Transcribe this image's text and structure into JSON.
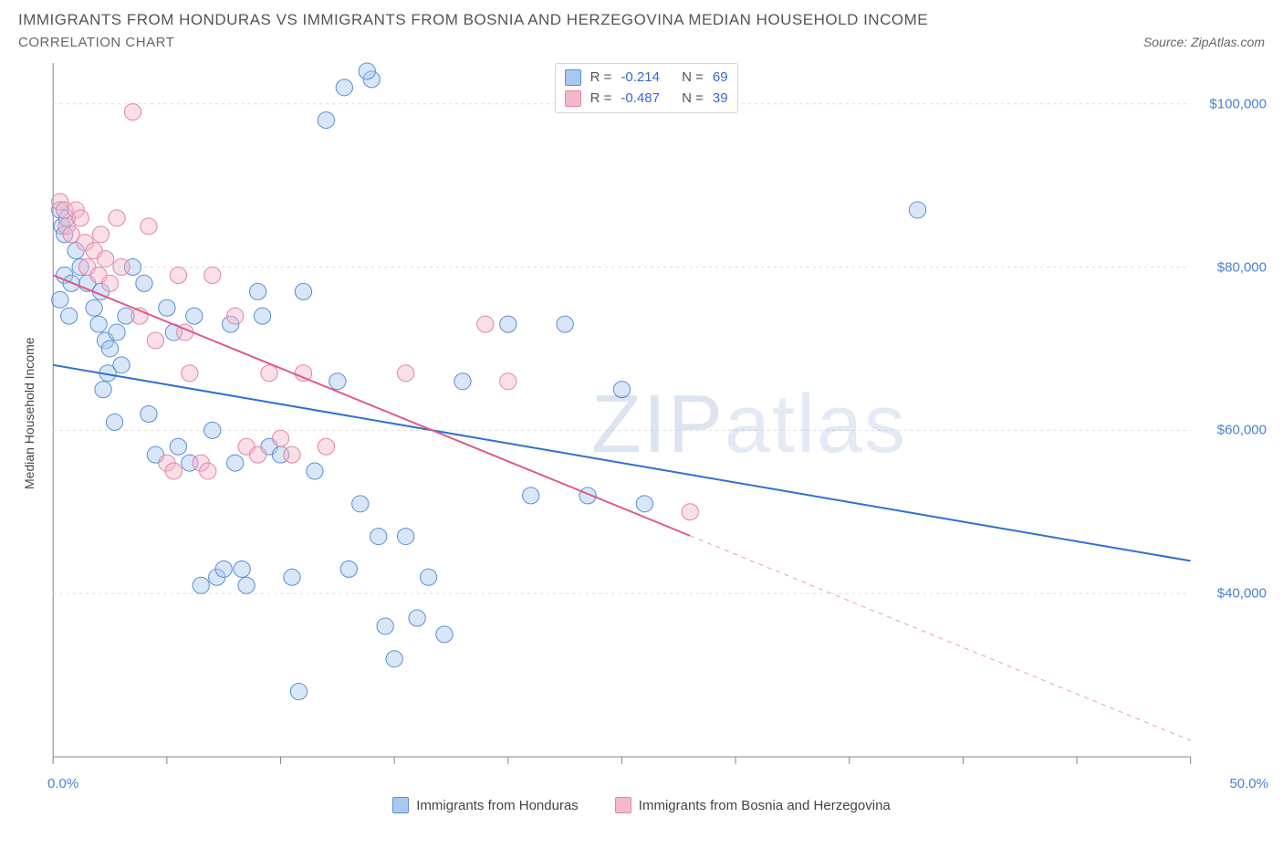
{
  "title": "IMMIGRANTS FROM HONDURAS VS IMMIGRANTS FROM BOSNIA AND HERZEGOVINA MEDIAN HOUSEHOLD INCOME",
  "subtitle": "CORRELATION CHART",
  "source": "Source: ZipAtlas.com",
  "watermark_a": "ZIP",
  "watermark_b": "atlas",
  "ylabel": "Median Household Income",
  "chart": {
    "type": "scatter",
    "background_color": "#ffffff",
    "grid_color": "#dcdcdc",
    "axis_color": "#888888",
    "tick_label_color": "#4a7fd8",
    "xlim": [
      0,
      50
    ],
    "ylim": [
      20000,
      105000
    ],
    "y_gridlines": [
      40000,
      60000,
      80000,
      100000
    ],
    "y_tick_labels": [
      "$40,000",
      "$60,000",
      "$80,000",
      "$100,000"
    ],
    "x_ticks": [
      0,
      5,
      10,
      15,
      20,
      25,
      30,
      35,
      40,
      45,
      50
    ],
    "x_min_label": "0.0%",
    "x_max_label": "50.0%",
    "marker_radius": 9,
    "marker_opacity": 0.45,
    "line_width": 2,
    "series": [
      {
        "name": "Immigrants from Honduras",
        "color_fill": "#a9c8f0",
        "color_stroke": "#5b8fd6",
        "line_color": "#2f6fd0",
        "R": "-0.214",
        "N": "69",
        "trend_x": [
          0,
          50
        ],
        "trend_y": [
          68000,
          44000
        ],
        "trend_solid_until": 50,
        "points": [
          [
            0.3,
            87000
          ],
          [
            0.4,
            85000
          ],
          [
            0.5,
            84000
          ],
          [
            0.6,
            86000
          ],
          [
            0.5,
            79000
          ],
          [
            0.8,
            78000
          ],
          [
            0.3,
            76000
          ],
          [
            0.7,
            74000
          ],
          [
            1.0,
            82000
          ],
          [
            1.2,
            80000
          ],
          [
            1.5,
            78000
          ],
          [
            1.8,
            75000
          ],
          [
            2.1,
            77000
          ],
          [
            2.0,
            73000
          ],
          [
            2.3,
            71000
          ],
          [
            2.5,
            70000
          ],
          [
            2.8,
            72000
          ],
          [
            3.0,
            68000
          ],
          [
            2.2,
            65000
          ],
          [
            2.4,
            67000
          ],
          [
            2.7,
            61000
          ],
          [
            3.2,
            74000
          ],
          [
            3.5,
            80000
          ],
          [
            4.0,
            78000
          ],
          [
            4.2,
            62000
          ],
          [
            4.5,
            57000
          ],
          [
            5.0,
            75000
          ],
          [
            5.3,
            72000
          ],
          [
            5.5,
            58000
          ],
          [
            6.0,
            56000
          ],
          [
            6.2,
            74000
          ],
          [
            6.5,
            41000
          ],
          [
            7.0,
            60000
          ],
          [
            7.2,
            42000
          ],
          [
            7.5,
            43000
          ],
          [
            7.8,
            73000
          ],
          [
            8.0,
            56000
          ],
          [
            8.3,
            43000
          ],
          [
            8.5,
            41000
          ],
          [
            9.0,
            77000
          ],
          [
            9.2,
            74000
          ],
          [
            9.5,
            58000
          ],
          [
            10.0,
            57000
          ],
          [
            10.5,
            42000
          ],
          [
            10.8,
            28000
          ],
          [
            11.0,
            77000
          ],
          [
            11.5,
            55000
          ],
          [
            12.0,
            98000
          ],
          [
            12.5,
            66000
          ],
          [
            13.0,
            43000
          ],
          [
            13.5,
            51000
          ],
          [
            14.0,
            103000
          ],
          [
            14.3,
            47000
          ],
          [
            14.6,
            36000
          ],
          [
            15.0,
            32000
          ],
          [
            15.5,
            47000
          ],
          [
            16.0,
            37000
          ],
          [
            16.5,
            42000
          ],
          [
            17.2,
            35000
          ],
          [
            18.0,
            66000
          ],
          [
            20.0,
            73000
          ],
          [
            21.0,
            52000
          ],
          [
            22.5,
            73000
          ],
          [
            23.5,
            52000
          ],
          [
            25.0,
            65000
          ],
          [
            26.0,
            51000
          ],
          [
            38.0,
            87000
          ],
          [
            12.8,
            102000
          ],
          [
            13.8,
            104000
          ]
        ]
      },
      {
        "name": "Immigrants from Bosnia and Herzegovina",
        "color_fill": "#f4b8c9",
        "color_stroke": "#e286a6",
        "line_color": "#e05a85",
        "R": "-0.487",
        "N": "39",
        "trend_x": [
          0,
          50
        ],
        "trend_y": [
          79000,
          22000
        ],
        "trend_solid_until": 28,
        "points": [
          [
            0.3,
            88000
          ],
          [
            0.5,
            87000
          ],
          [
            0.6,
            85000
          ],
          [
            0.8,
            84000
          ],
          [
            1.0,
            87000
          ],
          [
            1.2,
            86000
          ],
          [
            1.4,
            83000
          ],
          [
            1.5,
            80000
          ],
          [
            1.8,
            82000
          ],
          [
            2.0,
            79000
          ],
          [
            2.1,
            84000
          ],
          [
            2.3,
            81000
          ],
          [
            2.5,
            78000
          ],
          [
            2.8,
            86000
          ],
          [
            3.0,
            80000
          ],
          [
            3.5,
            99000
          ],
          [
            3.8,
            74000
          ],
          [
            4.2,
            85000
          ],
          [
            4.5,
            71000
          ],
          [
            5.0,
            56000
          ],
          [
            5.3,
            55000
          ],
          [
            5.5,
            79000
          ],
          [
            5.8,
            72000
          ],
          [
            6.0,
            67000
          ],
          [
            6.5,
            56000
          ],
          [
            6.8,
            55000
          ],
          [
            7.0,
            79000
          ],
          [
            8.0,
            74000
          ],
          [
            8.5,
            58000
          ],
          [
            9.0,
            57000
          ],
          [
            9.5,
            67000
          ],
          [
            10.0,
            59000
          ],
          [
            10.5,
            57000
          ],
          [
            11.0,
            67000
          ],
          [
            12.0,
            58000
          ],
          [
            15.5,
            67000
          ],
          [
            19.0,
            73000
          ],
          [
            20.0,
            66000
          ],
          [
            28.0,
            50000
          ]
        ]
      }
    ],
    "stats_labels": {
      "R": "R =",
      "N": "N ="
    }
  },
  "legend": {
    "series1": "Immigrants from Honduras",
    "series2": "Immigrants from Bosnia and Herzegovina"
  }
}
